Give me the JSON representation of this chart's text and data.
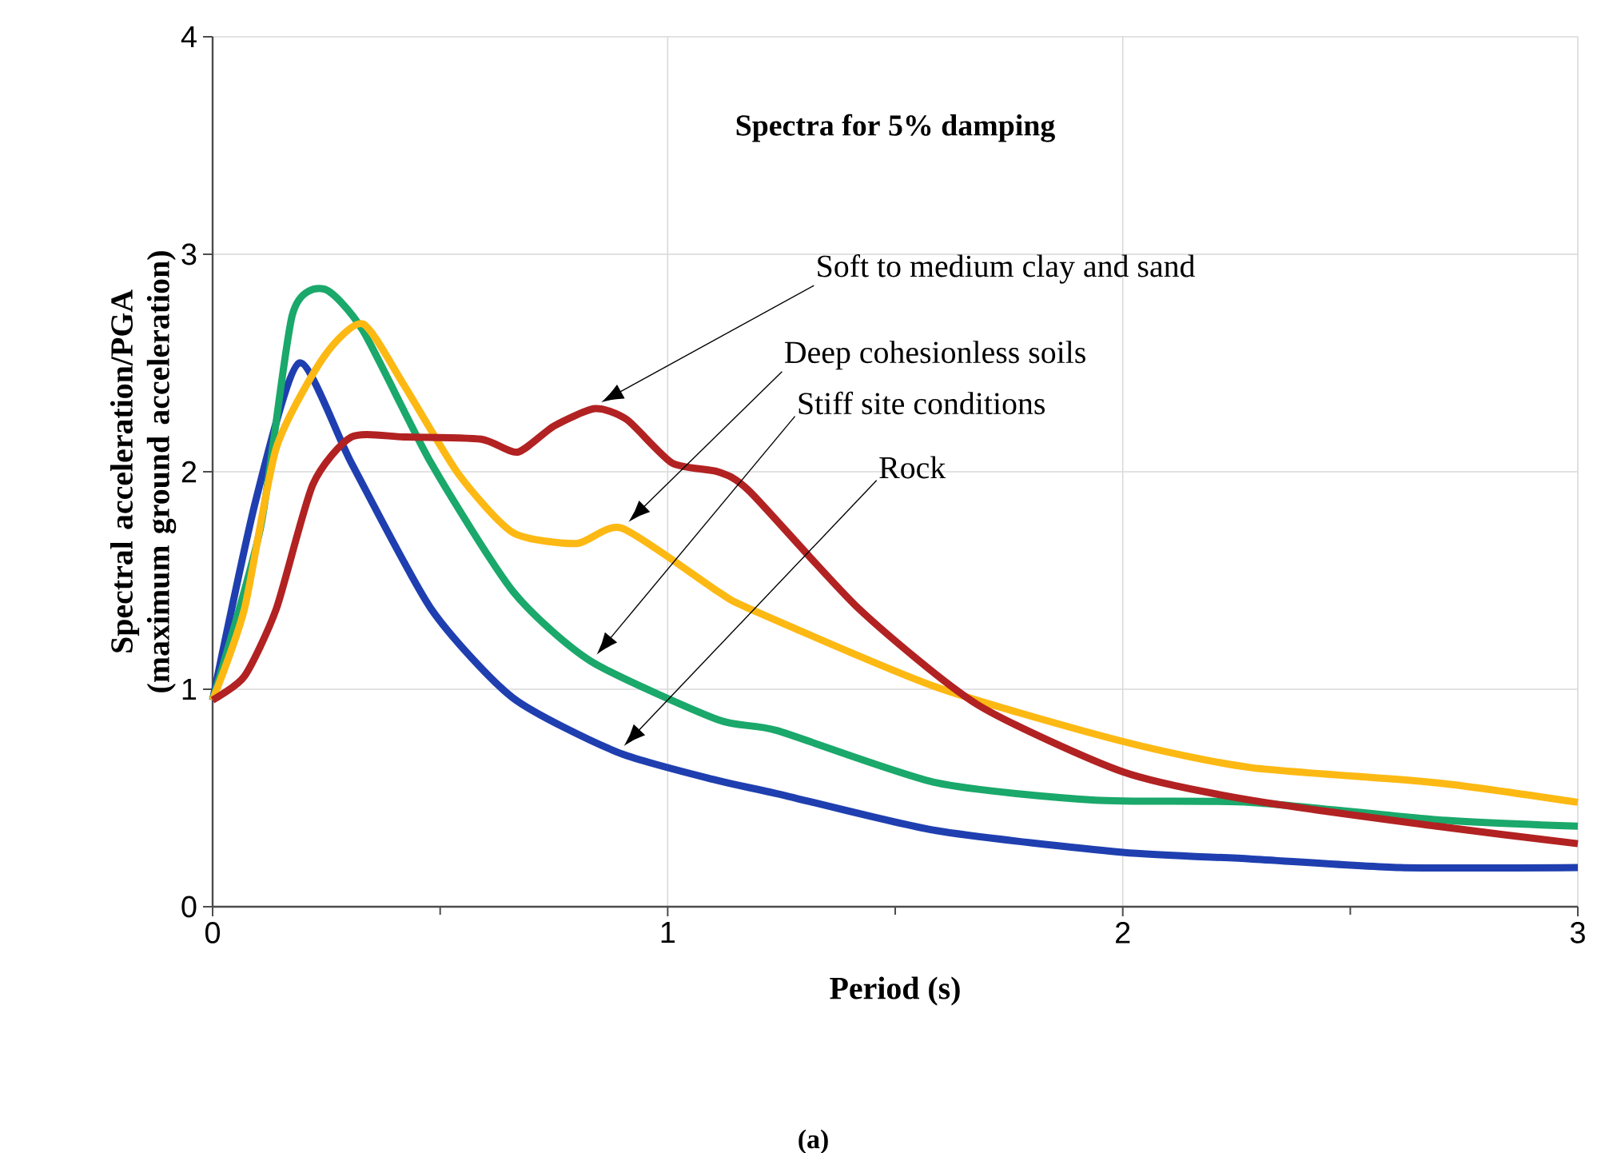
{
  "chart_data": {
    "type": "line",
    "xlabel": "Period (s)",
    "ylabel": "Spectral acceleration/PGA\n(maximum ground acceleration)",
    "xlim": [
      0,
      3
    ],
    "ylim": [
      0,
      4
    ],
    "xticks": [
      0,
      {
        "value": 0.5,
        "label": null
      },
      1,
      {
        "value": 1.5,
        "label": null
      },
      2,
      {
        "value": 2.5,
        "label": null
      },
      3
    ],
    "yticks": [
      0,
      1,
      2,
      3,
      4
    ],
    "grid": true,
    "marker": "none",
    "line_style": "solid",
    "series": [
      {
        "color": "#1f3fb0",
        "x": [
          0,
          0.095,
          0.19,
          0.305,
          0.48,
          0.66,
          0.89,
          1.11,
          1.24,
          1.59,
          2.0,
          2.28,
          2.61,
          3.0
        ],
        "values": [
          0.95,
          1.87,
          2.5,
          2.04,
          1.37,
          0.96,
          0.71,
          0.58,
          0.52,
          0.35,
          0.25,
          0.22,
          0.18,
          0.18
        ]
      },
      {
        "color": "#1aa86b",
        "x": [
          0,
          0.105,
          0.175,
          0.245,
          0.33,
          0.48,
          0.66,
          0.83,
          1.11,
          1.24,
          1.59,
          1.94,
          2.28,
          2.69,
          3.0
        ],
        "values": [
          0.95,
          1.74,
          2.72,
          2.84,
          2.65,
          2.04,
          1.45,
          1.13,
          0.86,
          0.81,
          0.57,
          0.49,
          0.48,
          0.4,
          0.37
        ]
      },
      {
        "color": "#fdb913",
        "x": [
          0,
          0.07,
          0.14,
          0.245,
          0.33,
          0.42,
          0.54,
          0.66,
          0.8,
          0.9,
          1.11,
          1.18,
          1.59,
          2.0,
          2.28,
          2.69,
          3.0
        ],
        "values": [
          0.95,
          1.37,
          2.11,
          2.53,
          2.68,
          2.4,
          1.99,
          1.72,
          1.67,
          1.74,
          1.45,
          1.37,
          1.01,
          0.76,
          0.64,
          0.57,
          0.48
        ]
      },
      {
        "color": "#b22222",
        "x": [
          0,
          0.07,
          0.14,
          0.22,
          0.305,
          0.42,
          0.59,
          0.67,
          0.75,
          0.84,
          0.91,
          1.01,
          1.11,
          1.18,
          1.42,
          1.68,
          2.0,
          2.28,
          2.69,
          3.0
        ],
        "values": [
          0.95,
          1.06,
          1.37,
          1.94,
          2.16,
          2.16,
          2.15,
          2.09,
          2.21,
          2.29,
          2.24,
          2.04,
          2.0,
          1.91,
          1.37,
          0.93,
          0.62,
          0.49,
          0.37,
          0.29
        ]
      }
    ],
    "annotations": [
      "Spectra for 5% damping",
      "Soft to medium clay and sand",
      "Deep cohesionless soils",
      "Stiff site conditions",
      "Rock",
      "(a)"
    ]
  }
}
